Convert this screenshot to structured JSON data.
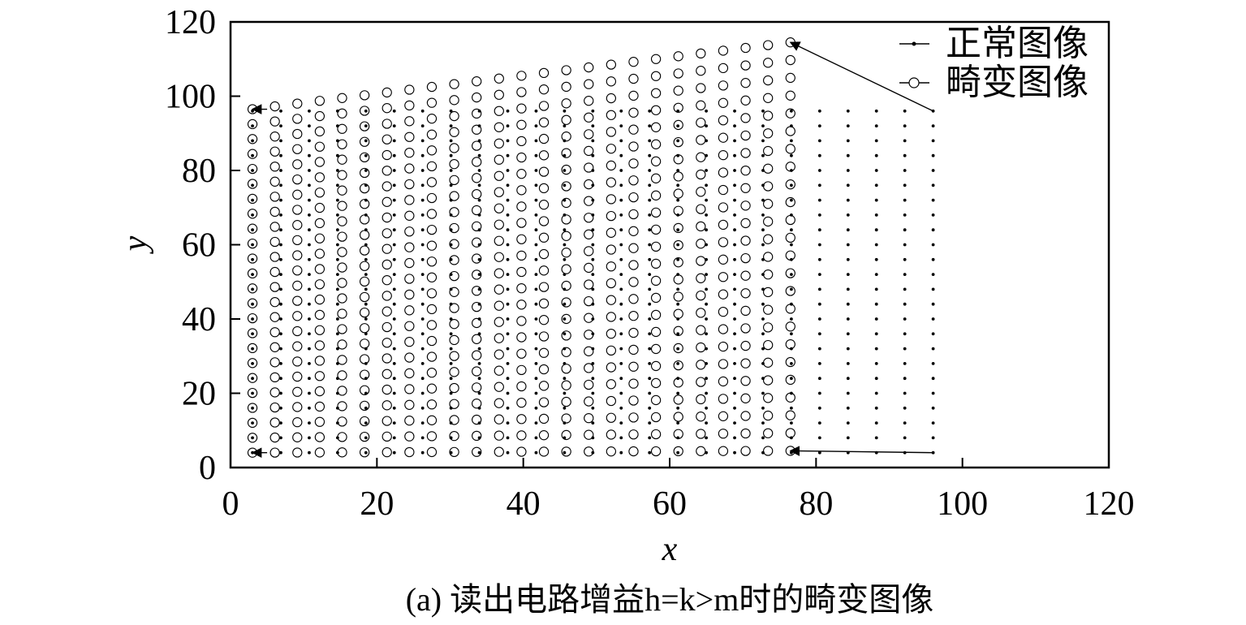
{
  "caption": "(a) 读出电路增益h=k>m时的畸变图像",
  "chart_data": {
    "type": "scatter",
    "title": "",
    "xlabel": "x",
    "ylabel": "y",
    "xlim": [
      0,
      120
    ],
    "ylim": [
      0,
      120
    ],
    "xticks": [
      "0",
      "20",
      "40",
      "60",
      "80",
      "100",
      "120"
    ],
    "yticks": [
      "0",
      "20",
      "40",
      "60",
      "80",
      "100",
      "120"
    ],
    "legend": {
      "position": "top-right",
      "entries": [
        "正常图像",
        "畸变图像"
      ]
    },
    "series": [
      {
        "name": "正常图像",
        "marker": "dot",
        "grid": {
          "x_start": 3,
          "x_end": 96,
          "x_count": 25,
          "y_start": 4,
          "y_end": 96,
          "y_count": 24
        }
      },
      {
        "name": "畸变图像",
        "marker": "circle",
        "grid": {
          "x_start": 3,
          "x_end": 76.5,
          "x_count": 25,
          "y_count": 24,
          "bottom_left": 4,
          "bottom_right": 4.5,
          "top_left": 96.5,
          "top_right": 114.5
        }
      }
    ],
    "annotations": [
      {
        "type": "arrow",
        "from": [
          96,
          96
        ],
        "to": [
          76.5,
          114.5
        ]
      },
      {
        "type": "arrow",
        "from": [
          96,
          4
        ],
        "to": [
          76.5,
          4.5
        ]
      },
      {
        "type": "arrow",
        "from": [
          5,
          96.5
        ],
        "to": [
          3,
          96.5
        ]
      },
      {
        "type": "arrow",
        "from": [
          5,
          4
        ],
        "to": [
          3,
          4
        ]
      }
    ]
  }
}
